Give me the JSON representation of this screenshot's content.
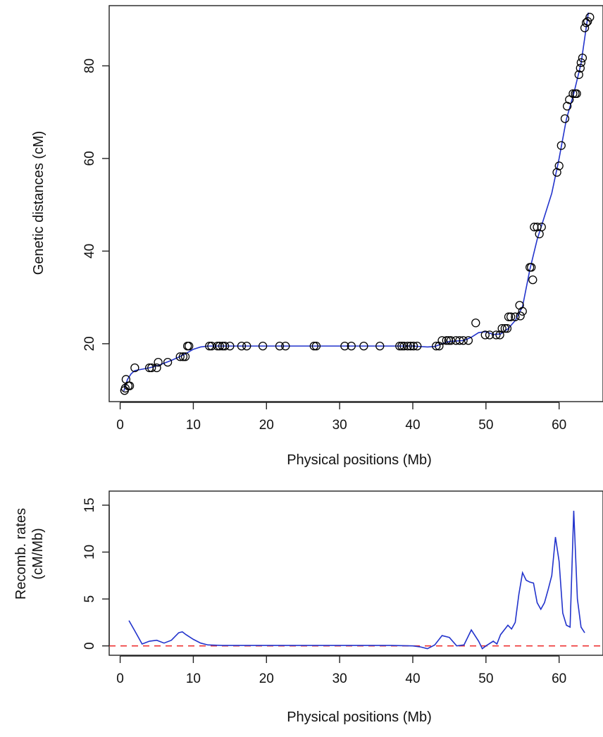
{
  "colors": {
    "fit": "#2233cc",
    "reference": "#ee3333",
    "markers": "#000000"
  },
  "chart_data": [
    {
      "type": "scatter",
      "xlabel": "Physical positions (Mb)",
      "ylabel": "Genetic distances (cM)",
      "xlim": [
        -1.5,
        66
      ],
      "ylim": [
        7.5,
        93
      ],
      "xticks": [
        0,
        10,
        20,
        30,
        40,
        50,
        60
      ],
      "yticks": [
        20,
        40,
        60,
        80
      ],
      "grid": false,
      "series": [
        {
          "kind": "points",
          "x": [
            0.6,
            0.7,
            0.8,
            1.1,
            1.3,
            2.0,
            4.0,
            4.3,
            5.0,
            5.2,
            6.5,
            8.2,
            8.6,
            8.9,
            9.2,
            9.4,
            12.2,
            12.5,
            13.3,
            13.6,
            14.0,
            14.3,
            15.0,
            16.6,
            17.3,
            19.5,
            21.8,
            22.6,
            26.5,
            26.8,
            30.7,
            31.6,
            33.3,
            35.5,
            38.2,
            38.5,
            38.8,
            39.3,
            39.7,
            40.1,
            40.6,
            43.2,
            43.6,
            44.0,
            44.6,
            44.9,
            45.2,
            45.9,
            46.4,
            46.9,
            47.6,
            48.6,
            49.9,
            50.5,
            51.4,
            51.9,
            52.2,
            52.6,
            52.9,
            53.1,
            53.4,
            54.0,
            54.6,
            54.7,
            55.0,
            56.0,
            56.2,
            56.4,
            56.6,
            57.0,
            57.3,
            57.6,
            59.7,
            60.0,
            60.3,
            60.8,
            61.1,
            61.4,
            61.9,
            62.2,
            62.4,
            62.7,
            62.9,
            63.0,
            63.2,
            63.5,
            63.7,
            63.9,
            64.2
          ],
          "y": [
            9.9,
            10.4,
            12.3,
            10.9,
            10.9,
            14.8,
            14.8,
            14.8,
            14.8,
            16.0,
            16.0,
            17.2,
            17.2,
            17.2,
            19.5,
            19.5,
            19.5,
            19.5,
            19.5,
            19.5,
            19.5,
            19.5,
            19.5,
            19.5,
            19.5,
            19.5,
            19.5,
            19.5,
            19.5,
            19.5,
            19.5,
            19.5,
            19.5,
            19.5,
            19.5,
            19.5,
            19.5,
            19.5,
            19.5,
            19.5,
            19.5,
            19.5,
            19.5,
            20.7,
            20.7,
            20.7,
            20.7,
            20.7,
            20.7,
            20.7,
            20.7,
            24.5,
            21.9,
            21.9,
            21.9,
            21.9,
            23.3,
            23.3,
            23.3,
            25.8,
            25.8,
            25.8,
            28.3,
            26.0,
            27.0,
            36.5,
            36.5,
            33.8,
            45.2,
            45.2,
            43.7,
            45.2,
            57.0,
            58.4,
            62.8,
            68.6,
            71.3,
            72.7,
            74.0,
            74.0,
            74.0,
            78.1,
            79.5,
            80.7,
            81.7,
            88.2,
            89.3,
            89.6,
            90.5
          ]
        },
        {
          "kind": "fit",
          "x": [
            0.5,
            1.0,
            1.5,
            2.0,
            3.0,
            4.0,
            5.0,
            6.0,
            7.0,
            8.0,
            9.0,
            10.0,
            11.0,
            12.0,
            14.0,
            20.0,
            30.0,
            40.0,
            42.0,
            43.0,
            44.0,
            45.0,
            46.0,
            47.0,
            48.0,
            49.0,
            50.0,
            51.0,
            52.0,
            53.0,
            54.0,
            55.0,
            56.0,
            57.0,
            58.0,
            59.0,
            60.0,
            61.0,
            62.0,
            63.0,
            64.0
          ],
          "y": [
            9.8,
            12.3,
            13.5,
            14.2,
            14.5,
            14.8,
            15.2,
            15.8,
            16.4,
            17.1,
            17.9,
            18.8,
            19.3,
            19.5,
            19.5,
            19.5,
            19.5,
            19.5,
            19.3,
            19.4,
            20.0,
            20.5,
            20.6,
            20.7,
            21.4,
            22.4,
            22.6,
            22.0,
            22.1,
            23.2,
            25.0,
            28.0,
            36.0,
            42.5,
            47.5,
            52.5,
            60.0,
            68.5,
            74.0,
            80.5,
            91.5
          ]
        }
      ]
    },
    {
      "type": "line",
      "xlabel": "Physical positions (Mb)",
      "ylabel": [
        "Recomb. rates",
        "(cM/Mb)"
      ],
      "xlim": [
        -1.5,
        66
      ],
      "ylim": [
        -1,
        16.5
      ],
      "xticks": [
        0,
        10,
        20,
        30,
        40,
        50,
        60
      ],
      "yticks": [
        0,
        5,
        10,
        15
      ],
      "grid": false,
      "reference_y": 0,
      "series": [
        {
          "x": [
            1.2,
            2.0,
            3.0,
            4.0,
            5.0,
            6.0,
            7.0,
            8.0,
            8.5,
            9.0,
            10.0,
            11.0,
            12.0,
            14.0,
            20.0,
            30.0,
            37.0,
            40.0,
            41.0,
            42.0,
            43.0,
            44.0,
            45.0,
            46.0,
            47.0,
            48.0,
            49.0,
            49.5,
            50.0,
            51.0,
            51.5,
            52.0,
            53.0,
            53.5,
            54.0,
            54.5,
            55.0,
            55.5,
            56.0,
            56.5,
            57.0,
            57.5,
            58.0,
            58.5,
            59.0,
            59.5,
            60.0,
            60.5,
            61.0,
            61.5,
            62.0,
            62.5,
            63.0,
            63.5
          ],
          "y": [
            2.7,
            1.6,
            0.2,
            0.5,
            0.6,
            0.3,
            0.6,
            1.4,
            1.5,
            1.2,
            0.7,
            0.3,
            0.1,
            0.05,
            0.05,
            0.05,
            0.05,
            0.0,
            -0.1,
            -0.3,
            0.1,
            1.1,
            0.9,
            0.0,
            0.1,
            1.7,
            0.5,
            -0.3,
            0.0,
            0.5,
            0.2,
            1.2,
            2.2,
            1.8,
            2.5,
            5.5,
            7.8,
            7.0,
            6.8,
            6.7,
            4.6,
            3.9,
            4.6,
            6.0,
            7.5,
            11.6,
            9.0,
            3.5,
            2.2,
            2.0,
            14.4,
            5.0,
            2.0,
            1.4
          ]
        }
      ]
    }
  ]
}
